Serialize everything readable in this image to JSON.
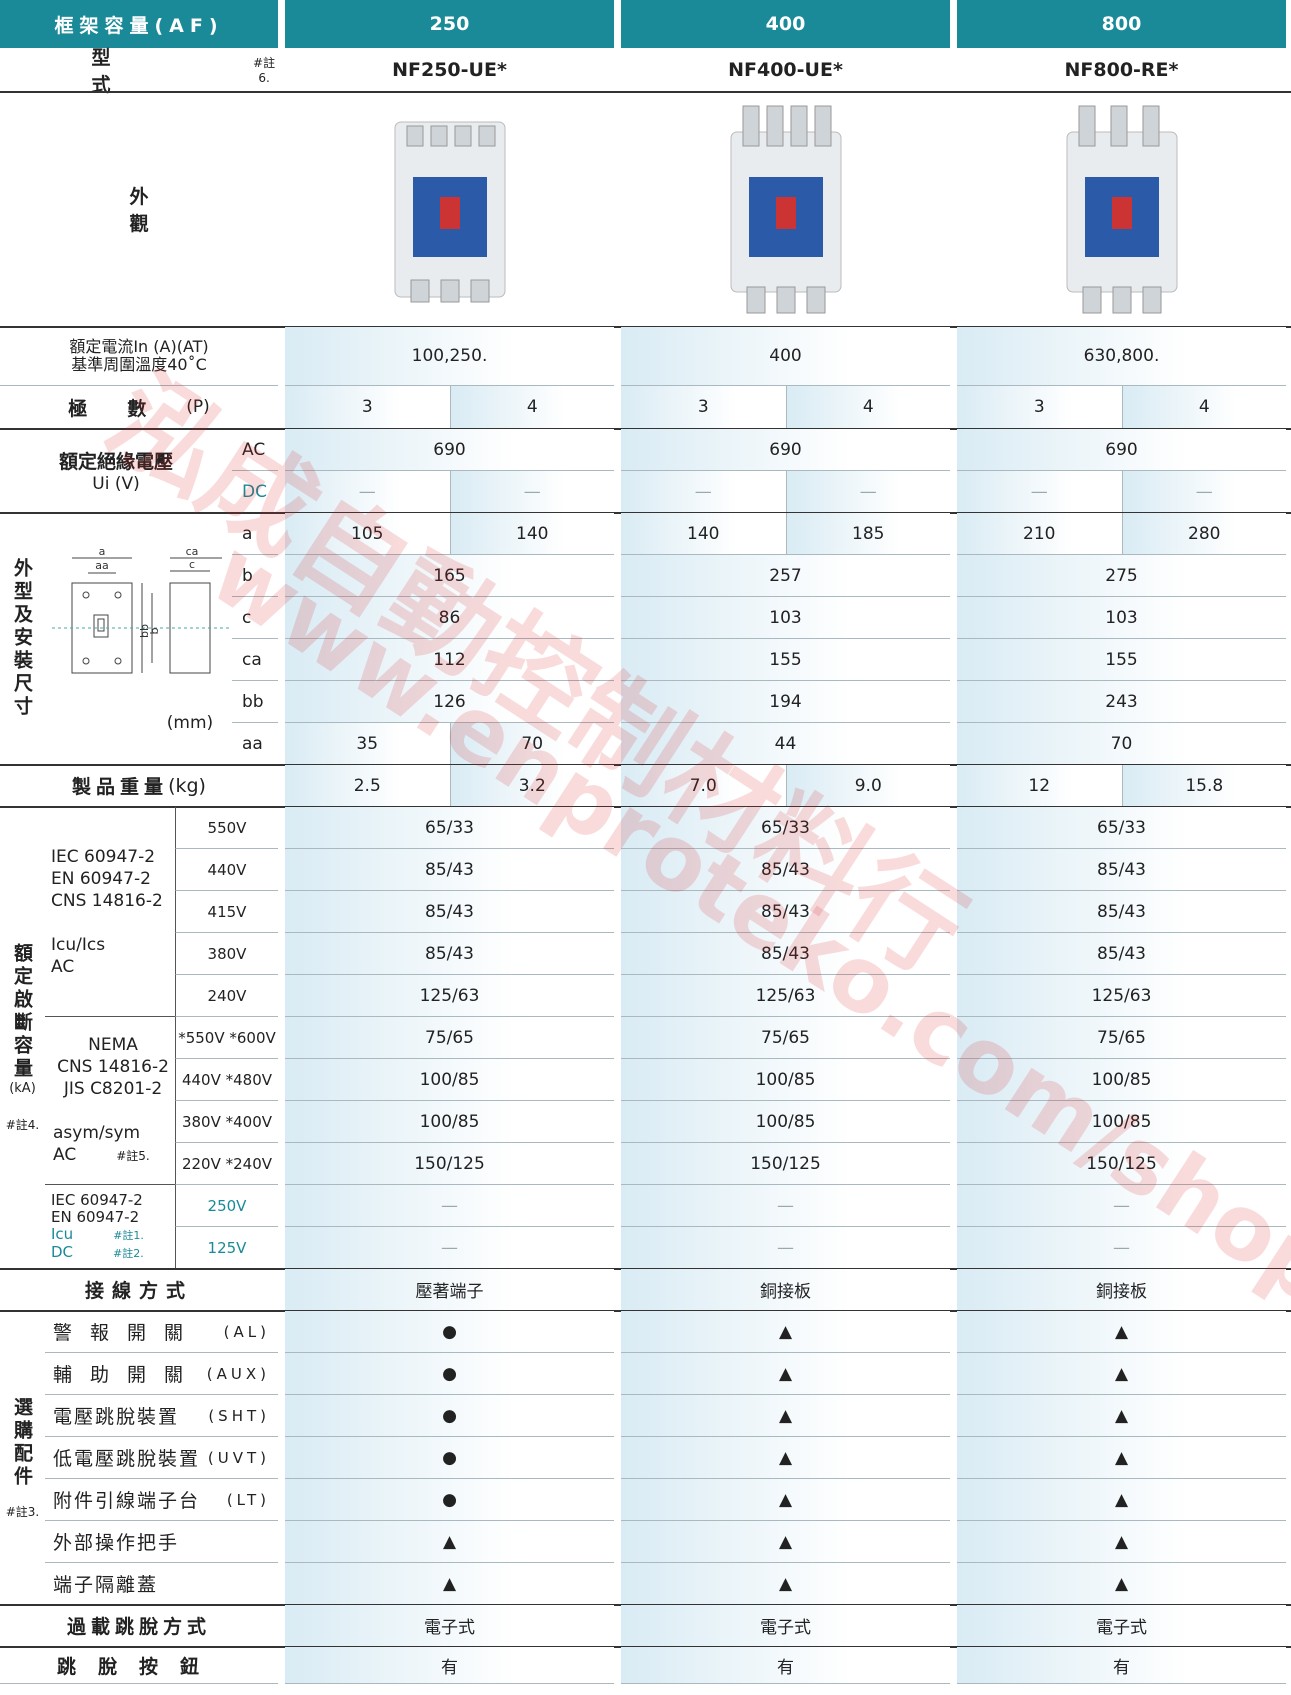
{
  "header": {
    "label": "框架容量(AF)",
    "columns": [
      "250",
      "400",
      "800"
    ]
  },
  "model": {
    "label": "型式",
    "note": "#註6.",
    "values": [
      "NF250-UE*",
      "NF400-UE*",
      "NF800-RE*"
    ]
  },
  "appearance": {
    "label": "外觀"
  },
  "rated_current": {
    "label_lines": [
      "額定電流In (A)(AT)",
      "基準周圍溫度40˚C"
    ],
    "values": [
      "100,250.",
      "400",
      "630,800."
    ]
  },
  "poles": {
    "label": "極數",
    "unit": "(P)",
    "values": [
      "3",
      "4",
      "3",
      "4",
      "3",
      "4"
    ]
  },
  "insulation": {
    "label": "額定絕緣電壓",
    "unit": "Ui (V)",
    "rows": [
      {
        "key": "AC",
        "values": [
          "690",
          "690",
          "690"
        ]
      },
      {
        "key": "DC",
        "values": [
          "—",
          "—",
          "—",
          "—",
          "—",
          "—"
        ]
      }
    ]
  },
  "dimensions": {
    "label": "外型及安裝尺寸",
    "unit": "(mm)",
    "diagram_labels": [
      "a",
      "aa",
      "ca",
      "c",
      "bb",
      "b"
    ],
    "rows": [
      {
        "key": "a",
        "values": [
          "105",
          "140",
          "140",
          "185",
          "210",
          "280"
        ]
      },
      {
        "key": "b",
        "values": [
          "165",
          "257",
          "275"
        ]
      },
      {
        "key": "c",
        "values": [
          "86",
          "103",
          "103"
        ]
      },
      {
        "key": "ca",
        "values": [
          "112",
          "155",
          "155"
        ]
      },
      {
        "key": "bb",
        "values": [
          "126",
          "194",
          "243"
        ]
      },
      {
        "key": "aa",
        "values": [
          "35",
          "70",
          "44",
          "70"
        ]
      }
    ]
  },
  "weight": {
    "label": "製品重量",
    "unit": "(kg)",
    "values": [
      "2.5",
      "3.2",
      "7.0",
      "9.0",
      "12",
      "15.8"
    ]
  },
  "breaking": {
    "label": "額定啟斷容量",
    "unit": "(kA)",
    "note": "#註4.",
    "groups": [
      {
        "standards": [
          "IEC 60947-2",
          "EN 60947-2",
          "CNS 14816-2"
        ],
        "type": [
          "Icu/Ics",
          "AC"
        ],
        "rows": [
          {
            "voltage": "550V",
            "values": [
              "65/33",
              "65/33",
              "65/33"
            ]
          },
          {
            "voltage": "440V",
            "values": [
              "85/43",
              "85/43",
              "85/43"
            ]
          },
          {
            "voltage": "415V",
            "values": [
              "85/43",
              "85/43",
              "85/43"
            ]
          },
          {
            "voltage": "380V",
            "values": [
              "85/43",
              "85/43",
              "85/43"
            ]
          },
          {
            "voltage": "240V",
            "values": [
              "125/63",
              "125/63",
              "125/63"
            ]
          }
        ]
      },
      {
        "standards": [
          "NEMA",
          "CNS 14816-2",
          "JIS C8201-2"
        ],
        "type": [
          "asym/sym",
          "AC"
        ],
        "note": "#註5.",
        "rows": [
          {
            "voltage": "*550V *600V",
            "values": [
              "75/65",
              "75/65",
              "75/65"
            ]
          },
          {
            "voltage": "440V *480V",
            "values": [
              "100/85",
              "100/85",
              "100/85"
            ]
          },
          {
            "voltage": "380V *400V",
            "values": [
              "100/85",
              "100/85",
              "100/85"
            ]
          },
          {
            "voltage": "220V *240V",
            "values": [
              "150/125",
              "150/125",
              "150/125"
            ]
          }
        ]
      },
      {
        "standards": [
          "IEC 60947-2",
          "EN 60947-2"
        ],
        "type": [
          "Icu",
          "DC"
        ],
        "type_notes": [
          "#註1.",
          "#註2."
        ],
        "rows": [
          {
            "voltage": "250V",
            "values": [
              "—",
              "—",
              "—"
            ]
          },
          {
            "voltage": "125V",
            "values": [
              "—",
              "—",
              "—"
            ]
          }
        ]
      }
    ]
  },
  "wiring": {
    "label": "接線方式",
    "values": [
      "壓著端子",
      "銅接板",
      "銅接板"
    ]
  },
  "accessories": {
    "label": "選購配件",
    "note": "#註3.",
    "rows": [
      {
        "name": "警報開關",
        "code": "(AL)",
        "values": [
          "●",
          "▲",
          "▲"
        ]
      },
      {
        "name": "輔助開關",
        "code": "(AUX)",
        "values": [
          "●",
          "▲",
          "▲"
        ]
      },
      {
        "name": "電壓跳脫裝置",
        "code": "(SHT)",
        "values": [
          "●",
          "▲",
          "▲"
        ]
      },
      {
        "name": "低電壓跳脫裝置",
        "code": "(UVT)",
        "values": [
          "●",
          "▲",
          "▲"
        ]
      },
      {
        "name": "附件引線端子台",
        "code": "(LT)",
        "values": [
          "●",
          "▲",
          "▲"
        ]
      },
      {
        "name": "外部操作把手",
        "values": [
          "▲",
          "▲",
          "▲"
        ]
      },
      {
        "name": "端子隔離蓋",
        "values": [
          "▲",
          "▲",
          "▲"
        ]
      }
    ]
  },
  "trip_method": {
    "label": "過載跳脫方式",
    "values": [
      "電子式",
      "電子式",
      "電子式"
    ]
  },
  "trip_button": {
    "label": "跳脫按鈕",
    "values": [
      "有",
      "有",
      "有"
    ]
  },
  "watermark": {
    "company": "泓成自動控制材料行",
    "url": "www.enproteko.com/shop"
  }
}
